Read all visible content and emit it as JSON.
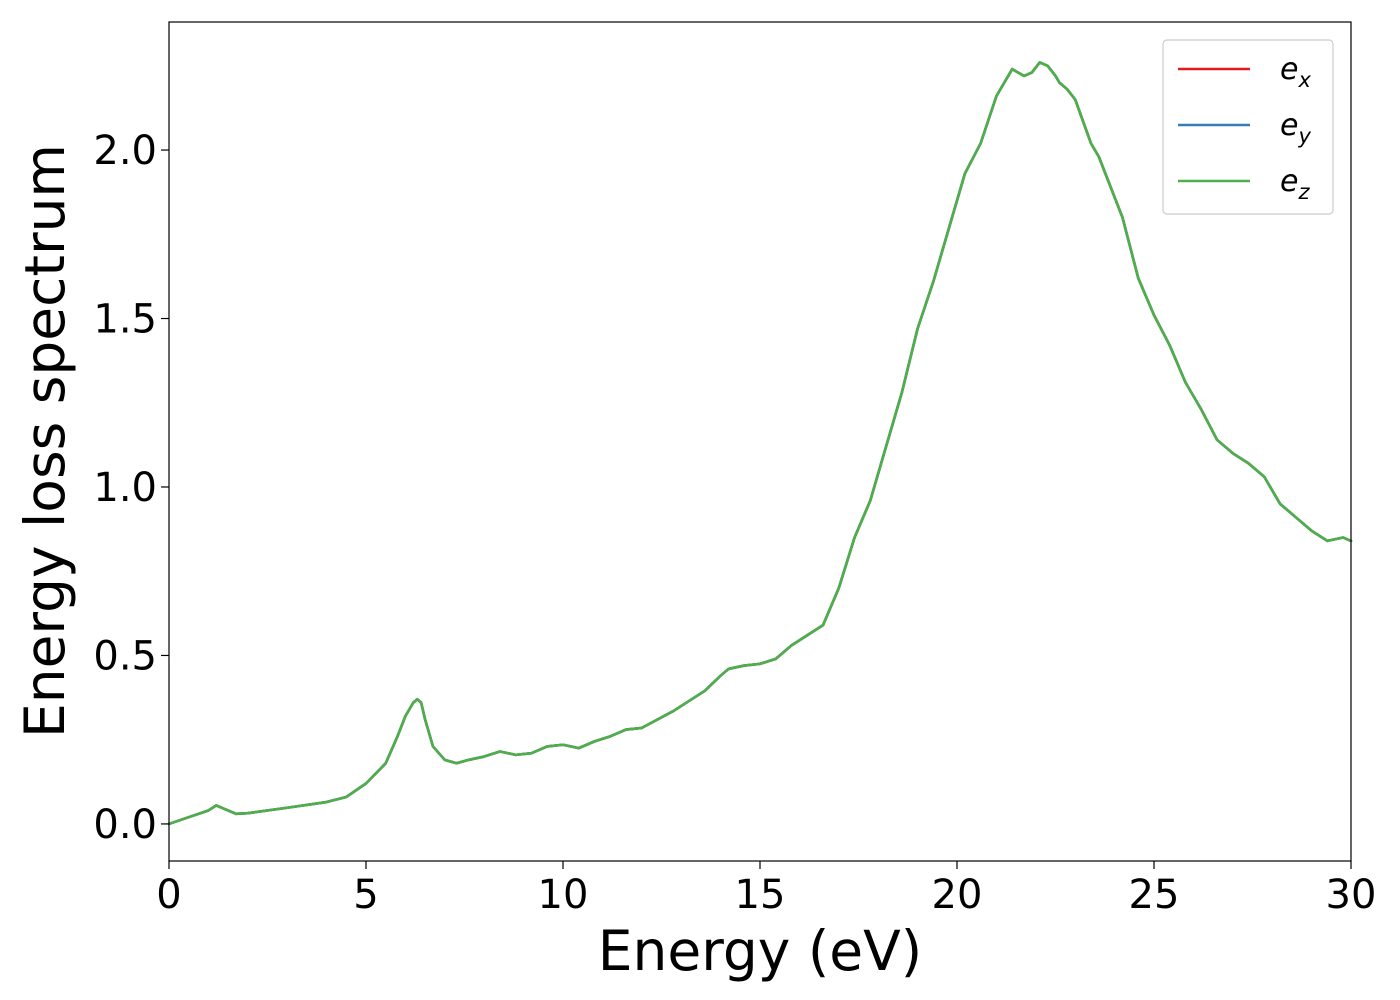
{
  "chart_data": {
    "type": "line",
    "xlabel": "Energy (eV)",
    "ylabel": "Energy loss spectrum",
    "xlim": [
      0,
      30
    ],
    "ylim": [
      -0.11,
      2.38
    ],
    "xticks": [
      "0",
      "5",
      "10",
      "15",
      "20",
      "25",
      "30"
    ],
    "yticks": [
      "0.0",
      "0.5",
      "1.0",
      "1.5",
      "2.0"
    ],
    "grid": false,
    "legend_position": "top-right",
    "x": [
      0,
      0.5,
      1.0,
      1.2,
      1.4,
      1.7,
      2,
      3,
      4,
      4.5,
      5,
      5.5,
      5.8,
      6.0,
      6.2,
      6.3,
      6.4,
      6.5,
      6.7,
      7.0,
      7.3,
      7.6,
      8,
      8.4,
      8.8,
      9.2,
      9.6,
      10,
      10.4,
      10.8,
      11.2,
      11.6,
      12,
      12.4,
      12.8,
      13.2,
      13.6,
      14.0,
      14.2,
      14.6,
      15,
      15.4,
      15.8,
      16.2,
      16.6,
      17.0,
      17.4,
      17.8,
      18.2,
      18.6,
      19.0,
      19.4,
      19.8,
      20.2,
      20.6,
      21.0,
      21.4,
      21.7,
      21.9,
      22.1,
      22.3,
      22.5,
      22.6,
      22.8,
      23.0,
      23.4,
      23.6,
      23.8,
      24.2,
      24.6,
      25.0,
      25.4,
      25.8,
      26.2,
      26.6,
      27.0,
      27.4,
      27.8,
      28.2,
      28.6,
      29.0,
      29.4,
      29.8,
      30.0
    ],
    "series": [
      {
        "name": "e",
        "subscript": "x",
        "color": "#e41a1c",
        "values": [
          0.0,
          0.02,
          0.04,
          0.055,
          0.045,
          0.03,
          0.032,
          0.048,
          0.065,
          0.08,
          0.12,
          0.18,
          0.26,
          0.32,
          0.36,
          0.37,
          0.36,
          0.31,
          0.23,
          0.19,
          0.18,
          0.19,
          0.2,
          0.215,
          0.205,
          0.21,
          0.23,
          0.235,
          0.225,
          0.245,
          0.26,
          0.28,
          0.285,
          0.31,
          0.335,
          0.365,
          0.395,
          0.44,
          0.46,
          0.47,
          0.475,
          0.49,
          0.53,
          0.56,
          0.59,
          0.7,
          0.85,
          0.96,
          1.12,
          1.28,
          1.47,
          1.61,
          1.77,
          1.93,
          2.02,
          2.16,
          2.24,
          2.22,
          2.23,
          2.26,
          2.25,
          2.22,
          2.2,
          2.18,
          2.15,
          2.02,
          1.98,
          1.92,
          1.8,
          1.62,
          1.51,
          1.42,
          1.31,
          1.23,
          1.14,
          1.1,
          1.07,
          1.03,
          0.95,
          0.91,
          0.87,
          0.84,
          0.85,
          0.84
        ]
      },
      {
        "name": "e",
        "subscript": "y",
        "color": "#377eb8",
        "values": [
          0.0,
          0.02,
          0.04,
          0.055,
          0.045,
          0.03,
          0.032,
          0.048,
          0.065,
          0.08,
          0.12,
          0.18,
          0.26,
          0.32,
          0.36,
          0.37,
          0.36,
          0.31,
          0.23,
          0.19,
          0.18,
          0.19,
          0.2,
          0.215,
          0.205,
          0.21,
          0.23,
          0.235,
          0.225,
          0.245,
          0.26,
          0.28,
          0.285,
          0.31,
          0.335,
          0.365,
          0.395,
          0.44,
          0.46,
          0.47,
          0.475,
          0.49,
          0.53,
          0.56,
          0.59,
          0.7,
          0.85,
          0.96,
          1.12,
          1.28,
          1.47,
          1.61,
          1.77,
          1.93,
          2.02,
          2.16,
          2.24,
          2.22,
          2.23,
          2.26,
          2.25,
          2.22,
          2.2,
          2.18,
          2.15,
          2.02,
          1.98,
          1.92,
          1.8,
          1.62,
          1.51,
          1.42,
          1.31,
          1.23,
          1.14,
          1.1,
          1.07,
          1.03,
          0.95,
          0.91,
          0.87,
          0.84,
          0.85,
          0.84
        ]
      },
      {
        "name": "e",
        "subscript": "z",
        "color": "#4daf4a",
        "values": [
          0.0,
          0.02,
          0.04,
          0.055,
          0.045,
          0.03,
          0.032,
          0.048,
          0.065,
          0.08,
          0.12,
          0.18,
          0.26,
          0.32,
          0.36,
          0.37,
          0.36,
          0.31,
          0.23,
          0.19,
          0.18,
          0.19,
          0.2,
          0.215,
          0.205,
          0.21,
          0.23,
          0.235,
          0.225,
          0.245,
          0.26,
          0.28,
          0.285,
          0.31,
          0.335,
          0.365,
          0.395,
          0.44,
          0.46,
          0.47,
          0.475,
          0.49,
          0.53,
          0.56,
          0.59,
          0.7,
          0.85,
          0.96,
          1.12,
          1.28,
          1.47,
          1.61,
          1.77,
          1.93,
          2.02,
          2.16,
          2.24,
          2.22,
          2.23,
          2.26,
          2.25,
          2.22,
          2.2,
          2.18,
          2.15,
          2.02,
          1.98,
          1.92,
          1.8,
          1.62,
          1.51,
          1.42,
          1.31,
          1.23,
          1.14,
          1.1,
          1.07,
          1.03,
          0.95,
          0.91,
          0.87,
          0.84,
          0.85,
          0.84
        ]
      }
    ]
  }
}
